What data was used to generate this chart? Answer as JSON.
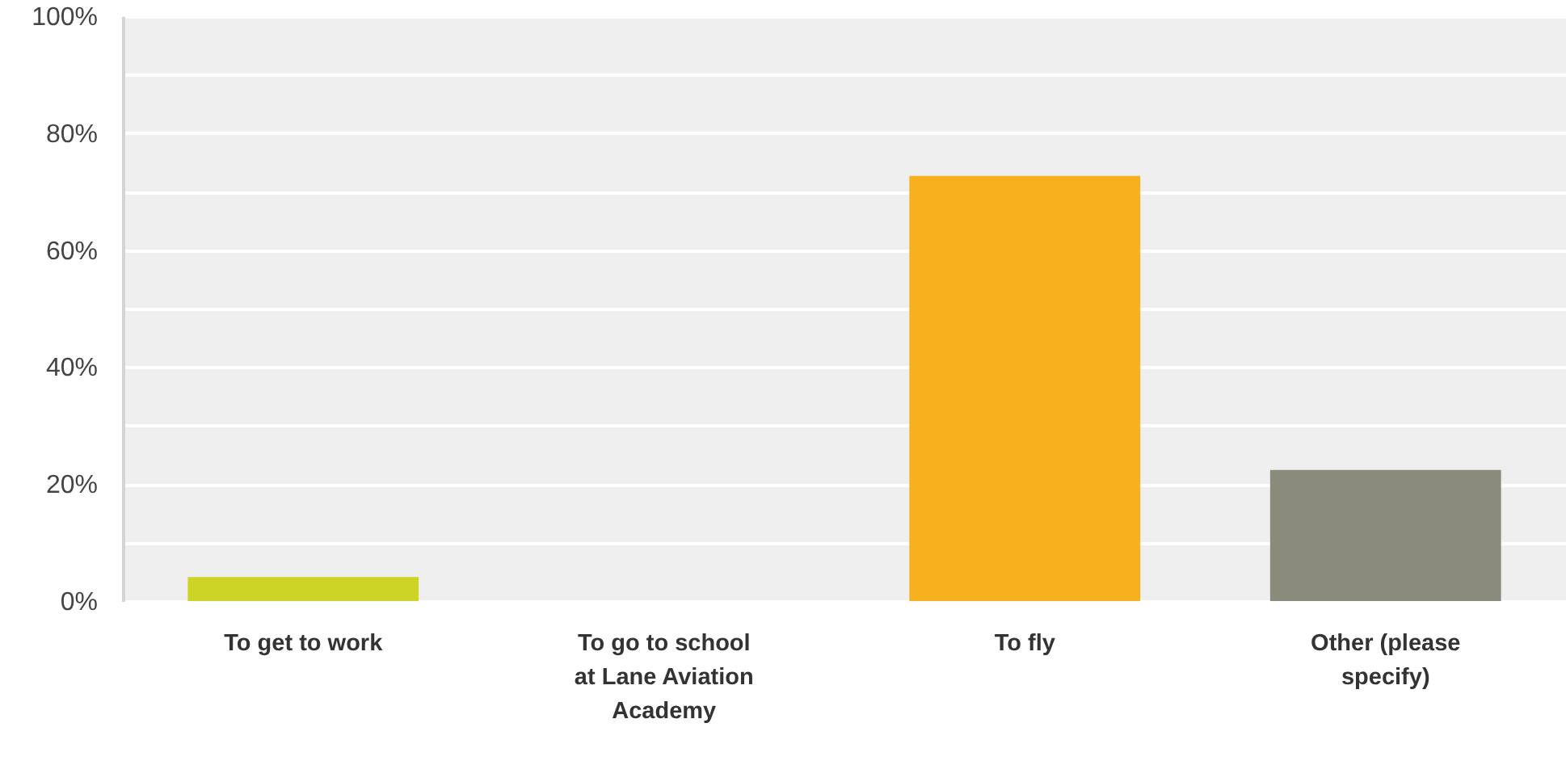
{
  "chart_data": {
    "type": "bar",
    "categories": [
      "To get to work",
      "To go to school at Lane Aviation Academy",
      "To fly",
      "Other (please specify)"
    ],
    "values": [
      4.1,
      0,
      72.7,
      22.4
    ],
    "colors": [
      "#cdd425",
      "#9aa0a6",
      "#f7b01e",
      "#8b8b7b"
    ],
    "ylim": [
      0,
      100
    ],
    "yticks": [
      {
        "value": 0,
        "label": "0%"
      },
      {
        "value": 10,
        "label": null
      },
      {
        "value": 20,
        "label": "20%"
      },
      {
        "value": 30,
        "label": null
      },
      {
        "value": 40,
        "label": "40%"
      },
      {
        "value": 50,
        "label": null
      },
      {
        "value": 60,
        "label": "60%"
      },
      {
        "value": 70,
        "label": null
      },
      {
        "value": 80,
        "label": "80%"
      },
      {
        "value": 90,
        "label": null
      },
      {
        "value": 100,
        "label": "100%"
      }
    ],
    "grid": true
  }
}
